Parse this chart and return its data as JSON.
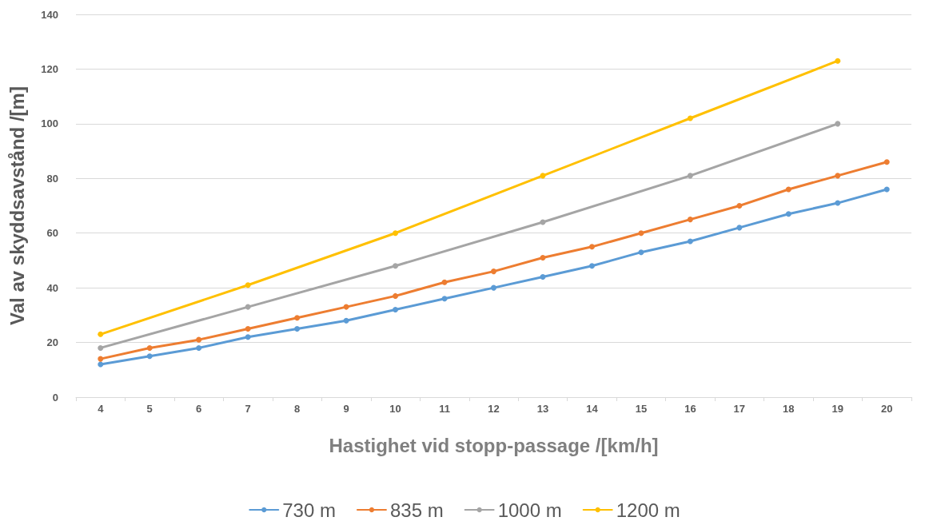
{
  "chart_data": {
    "type": "line",
    "xlabel": "Hastighet vid stopp-passage /[km/h]",
    "ylabel": "Val av skyddsavstånd /[m]",
    "categories": [
      "4",
      "5",
      "6",
      "7",
      "8",
      "9",
      "10",
      "11",
      "12",
      "13",
      "14",
      "15",
      "16",
      "17",
      "18",
      "19",
      "20"
    ],
    "series": [
      {
        "name": "730 m",
        "color": "#5b9bd5",
        "values": [
          12,
          15,
          18,
          22,
          25,
          28,
          32,
          36,
          40,
          44,
          48,
          53,
          57,
          62,
          67,
          71,
          76
        ]
      },
      {
        "name": "835 m",
        "color": "#ed7d31",
        "values": [
          14,
          18,
          21,
          25,
          29,
          33,
          37,
          42,
          46,
          51,
          55,
          60,
          65,
          70,
          76,
          81,
          86
        ]
      },
      {
        "name": "1000 m",
        "color": "#a5a5a5",
        "values": [
          18,
          null,
          null,
          33,
          null,
          null,
          48,
          null,
          null,
          64,
          null,
          null,
          81,
          null,
          null,
          100,
          null
        ]
      },
      {
        "name": "1200 m",
        "color": "#ffc000",
        "values": [
          23,
          null,
          null,
          41,
          null,
          null,
          60,
          null,
          null,
          81,
          null,
          null,
          102,
          null,
          null,
          123,
          null
        ]
      }
    ],
    "ylim": [
      0,
      140
    ],
    "yticks": [
      0,
      20,
      40,
      60,
      80,
      100,
      120,
      140
    ],
    "grid": "y",
    "legend": "bottom",
    "marker": "circle",
    "line_style": "solid"
  }
}
